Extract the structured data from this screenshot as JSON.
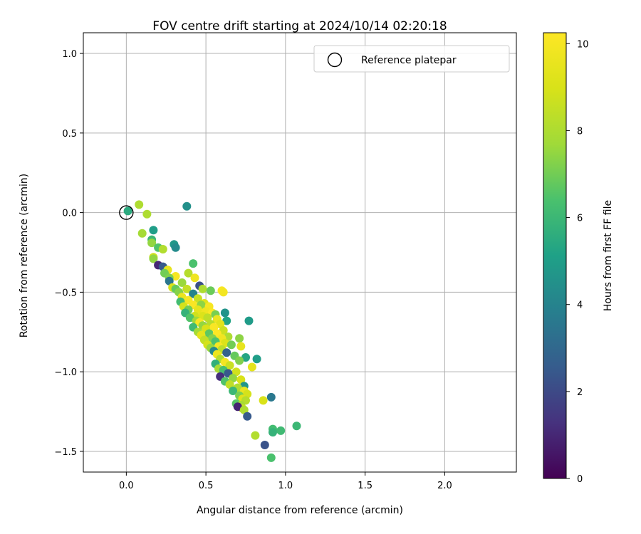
{
  "chart_data": {
    "type": "scatter",
    "title": "FOV centre drift starting at 2024/10/14 02:20:18",
    "xlabel": "Angular distance from reference (arcmin)",
    "ylabel": "Rotation from reference (arcmin)",
    "xlim": [
      -0.27,
      2.45
    ],
    "ylim": [
      -1.63,
      1.13
    ],
    "xticks": [
      0.0,
      0.5,
      1.0,
      1.5,
      2.0
    ],
    "xtick_labels": [
      "0.0",
      "0.5",
      "1.0",
      "1.5",
      "2.0"
    ],
    "yticks": [
      -1.5,
      -1.0,
      -0.5,
      0.0,
      0.5,
      1.0
    ],
    "ytick_labels": [
      "−1.5",
      "−1.0",
      "−0.5",
      "0.0",
      "0.5",
      "1.0"
    ],
    "grid": true,
    "legend": {
      "position": "top-right",
      "entries": [
        "Reference platepar"
      ]
    },
    "reference_point": {
      "x": 0.0,
      "y": 0.0
    },
    "colorbar": {
      "label": "Hours from first FF file",
      "colormap": "viridis",
      "range": [
        0,
        10.25
      ],
      "ticks": [
        0,
        2,
        4,
        6,
        8,
        10
      ],
      "tick_labels": [
        "0",
        "2",
        "4",
        "6",
        "8",
        "10"
      ]
    },
    "points_columns": [
      "x",
      "y",
      "hours"
    ],
    "points": [
      [
        0.01,
        0.01,
        5.5
      ],
      [
        0.08,
        0.05,
        8.0
      ],
      [
        0.13,
        -0.01,
        8.0
      ],
      [
        0.38,
        0.04,
        4.5
      ],
      [
        0.17,
        -0.11,
        5.0
      ],
      [
        0.1,
        -0.13,
        7.8
      ],
      [
        0.16,
        -0.17,
        6.0
      ],
      [
        0.16,
        -0.19,
        7.5
      ],
      [
        0.3,
        -0.2,
        4.8
      ],
      [
        0.31,
        -0.22,
        4.3
      ],
      [
        0.2,
        -0.22,
        6.5
      ],
      [
        0.23,
        -0.23,
        8.1
      ],
      [
        0.17,
        -0.28,
        8.8
      ],
      [
        0.17,
        -0.29,
        7.5
      ],
      [
        0.42,
        -0.32,
        6.4
      ],
      [
        0.2,
        -0.33,
        1.0
      ],
      [
        0.23,
        -0.34,
        2.5
      ],
      [
        0.26,
        -0.36,
        9.5
      ],
      [
        0.24,
        -0.38,
        7.0
      ],
      [
        0.39,
        -0.38,
        8.2
      ],
      [
        0.31,
        -0.4,
        10.0
      ],
      [
        0.27,
        -0.41,
        7.2
      ],
      [
        0.43,
        -0.41,
        9.8
      ],
      [
        0.27,
        -0.43,
        3.5
      ],
      [
        0.35,
        -0.44,
        7.6
      ],
      [
        0.46,
        -0.46,
        2.2
      ],
      [
        0.29,
        -0.47,
        9.0
      ],
      [
        0.31,
        -0.48,
        6.8
      ],
      [
        0.38,
        -0.48,
        8.5
      ],
      [
        0.48,
        -0.48,
        8.0
      ],
      [
        0.53,
        -0.49,
        6.9
      ],
      [
        0.6,
        -0.49,
        10.1
      ],
      [
        0.61,
        -0.5,
        9.9
      ],
      [
        0.33,
        -0.5,
        7.3
      ],
      [
        0.42,
        -0.51,
        4.0
      ],
      [
        0.35,
        -0.53,
        9.6
      ],
      [
        0.45,
        -0.54,
        8.6
      ],
      [
        0.39,
        -0.55,
        10.0
      ],
      [
        0.34,
        -0.56,
        6.2
      ],
      [
        0.49,
        -0.57,
        9.2
      ],
      [
        0.42,
        -0.58,
        10.1
      ],
      [
        0.47,
        -0.58,
        7.4
      ],
      [
        0.36,
        -0.59,
        8.9
      ],
      [
        0.52,
        -0.59,
        10.0
      ],
      [
        0.39,
        -0.61,
        7.0
      ],
      [
        0.45,
        -0.61,
        9.5
      ],
      [
        0.5,
        -0.62,
        9.8
      ],
      [
        0.54,
        -0.63,
        10.2
      ],
      [
        0.62,
        -0.63,
        4.6
      ],
      [
        0.37,
        -0.63,
        5.8
      ],
      [
        0.56,
        -0.64,
        7.1
      ],
      [
        0.43,
        -0.65,
        8.8
      ],
      [
        0.48,
        -0.65,
        9.1
      ],
      [
        0.4,
        -0.66,
        6.5
      ],
      [
        0.51,
        -0.66,
        8.4
      ],
      [
        0.57,
        -0.67,
        9.7
      ],
      [
        0.44,
        -0.68,
        7.7
      ],
      [
        0.63,
        -0.68,
        5.2
      ],
      [
        0.77,
        -0.68,
        4.9
      ],
      [
        0.46,
        -0.69,
        10.0
      ],
      [
        0.53,
        -0.7,
        8.2
      ],
      [
        0.59,
        -0.7,
        9.3
      ],
      [
        0.48,
        -0.71,
        7.5
      ],
      [
        0.42,
        -0.72,
        6.1
      ],
      [
        0.55,
        -0.72,
        10.1
      ],
      [
        0.5,
        -0.73,
        9.0
      ],
      [
        0.61,
        -0.74,
        8.7
      ],
      [
        0.45,
        -0.75,
        7.8
      ],
      [
        0.52,
        -0.76,
        6.7
      ],
      [
        0.57,
        -0.76,
        10.2
      ],
      [
        0.47,
        -0.77,
        9.4
      ],
      [
        0.64,
        -0.78,
        8.0
      ],
      [
        0.54,
        -0.79,
        7.3
      ],
      [
        0.6,
        -0.79,
        9.8
      ],
      [
        0.49,
        -0.8,
        8.5
      ],
      [
        0.71,
        -0.79,
        7.4
      ],
      [
        0.56,
        -0.81,
        6.4
      ],
      [
        0.62,
        -0.82,
        9.1
      ],
      [
        0.51,
        -0.83,
        8.9
      ],
      [
        0.58,
        -0.84,
        10.0
      ],
      [
        0.66,
        -0.83,
        7.0
      ],
      [
        0.72,
        -0.84,
        9.5
      ],
      [
        0.53,
        -0.85,
        7.6
      ],
      [
        0.6,
        -0.86,
        8.3
      ],
      [
        0.55,
        -0.87,
        4.2
      ],
      [
        0.63,
        -0.88,
        2.8
      ],
      [
        0.57,
        -0.89,
        9.7
      ],
      [
        0.68,
        -0.9,
        6.8
      ],
      [
        0.75,
        -0.91,
        5.3
      ],
      [
        0.82,
        -0.92,
        5.0
      ],
      [
        0.59,
        -0.92,
        8.1
      ],
      [
        0.71,
        -0.93,
        7.2
      ],
      [
        0.62,
        -0.94,
        9.9
      ],
      [
        0.56,
        -0.95,
        5.7
      ],
      [
        0.65,
        -0.96,
        8.6
      ],
      [
        0.79,
        -0.97,
        9.4
      ],
      [
        0.58,
        -0.98,
        7.9
      ],
      [
        0.61,
        -0.99,
        6.3
      ],
      [
        0.69,
        -1.0,
        8.8
      ],
      [
        0.64,
        -1.01,
        2.5
      ],
      [
        0.59,
        -1.03,
        1.2
      ],
      [
        0.67,
        -1.04,
        7.5
      ],
      [
        0.72,
        -1.05,
        9.0
      ],
      [
        0.62,
        -1.06,
        6.5
      ],
      [
        0.65,
        -1.08,
        8.4
      ],
      [
        0.74,
        -1.09,
        4.7
      ],
      [
        0.7,
        -1.1,
        8.0
      ],
      [
        0.67,
        -1.12,
        6.0
      ],
      [
        0.74,
        -1.12,
        9.6
      ],
      [
        0.76,
        -1.14,
        8.9
      ],
      [
        0.71,
        -1.15,
        7.1
      ],
      [
        0.91,
        -1.16,
        3.6
      ],
      [
        0.73,
        -1.17,
        9.2
      ],
      [
        0.75,
        -1.18,
        8.2
      ],
      [
        0.86,
        -1.18,
        9.0
      ],
      [
        0.69,
        -1.2,
        6.6
      ],
      [
        0.72,
        -1.21,
        7.8
      ],
      [
        0.73,
        -1.23,
        8.5
      ],
      [
        0.7,
        -1.22,
        0.9
      ],
      [
        0.74,
        -1.24,
        8.0
      ],
      [
        0.76,
        -1.28,
        2.5
      ],
      [
        0.92,
        -1.36,
        6.2
      ],
      [
        1.07,
        -1.34,
        6.0
      ],
      [
        0.97,
        -1.37,
        6.1
      ],
      [
        0.92,
        -1.38,
        5.8
      ],
      [
        0.81,
        -1.4,
        8.1
      ],
      [
        0.87,
        -1.46,
        2.3
      ],
      [
        0.91,
        -1.54,
        6.4
      ]
    ]
  }
}
